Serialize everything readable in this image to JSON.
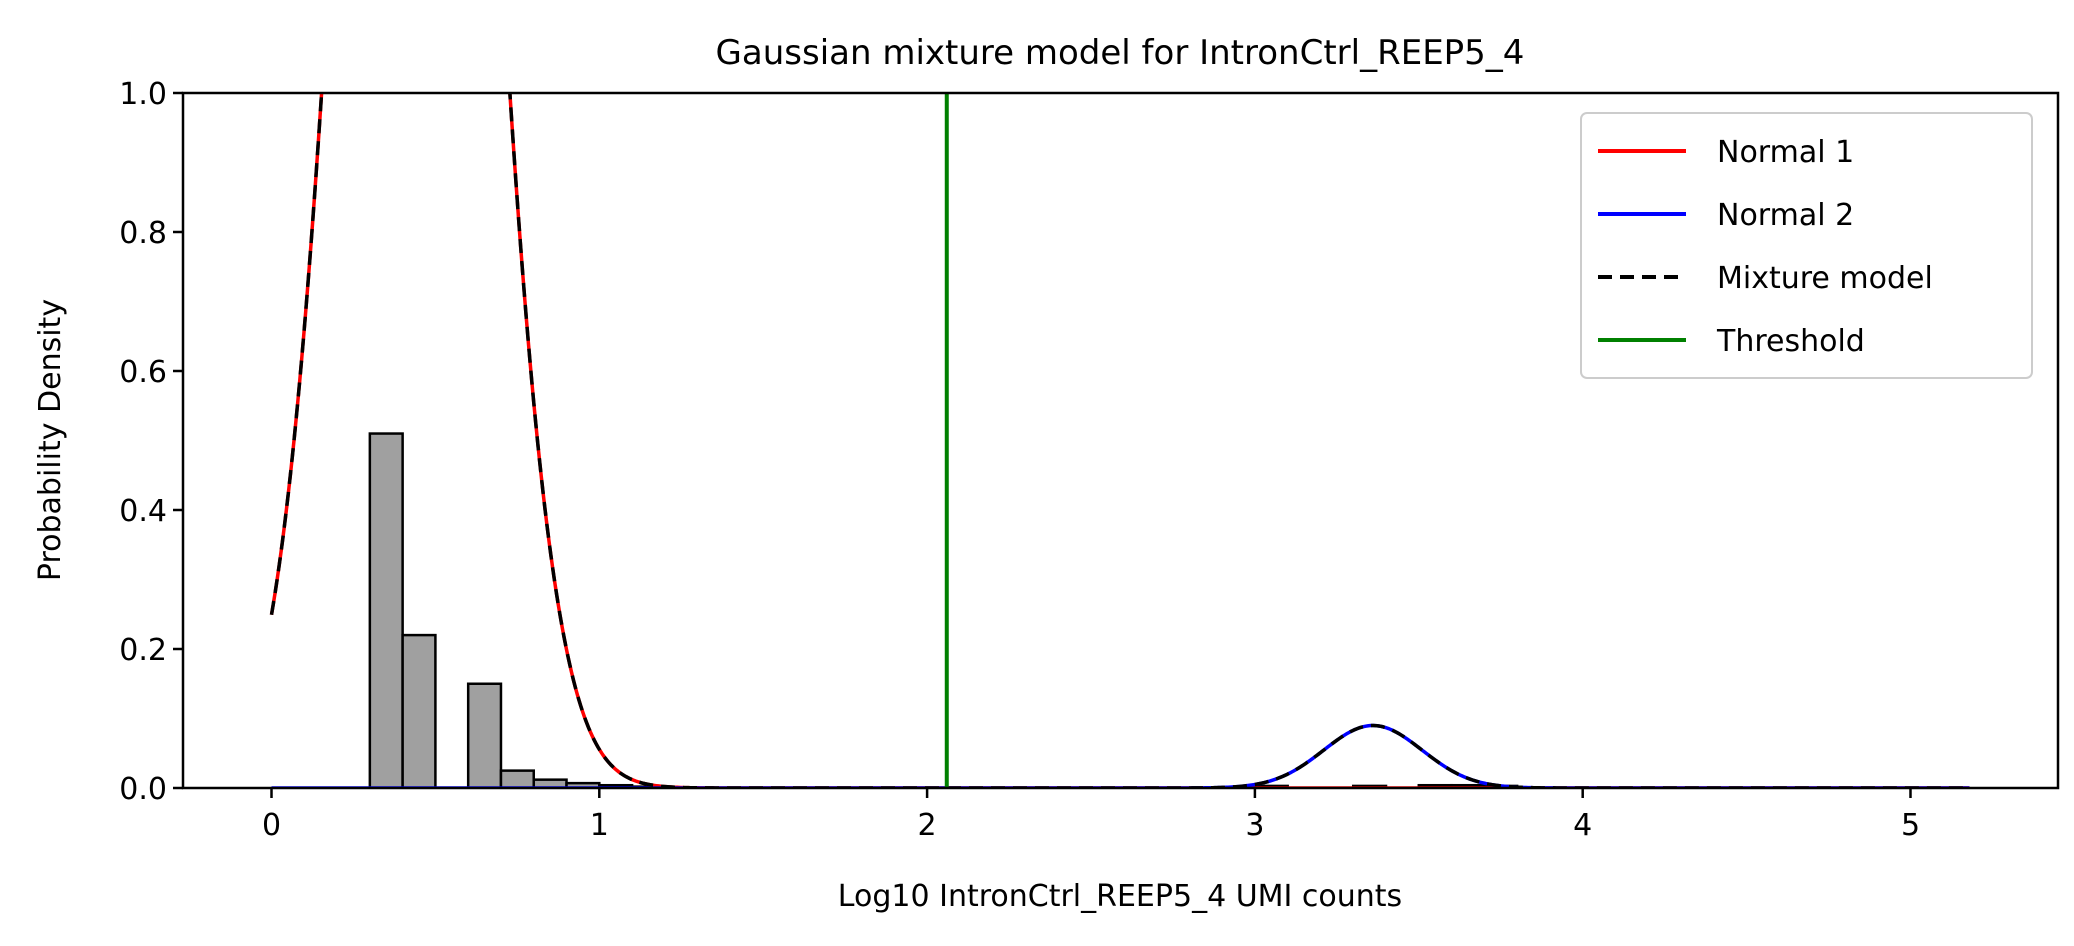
{
  "chart_data": {
    "type": "line",
    "title": "Gaussian mixture model for IntronCtrl_REEP5_4",
    "xlabel": "Log10 IntronCtrl_REEP5_4 UMI counts",
    "ylabel": "Probability Density",
    "xlim": [
      -0.27,
      5.45
    ],
    "ylim": [
      0,
      1.0
    ],
    "xticks": [
      "0",
      "1",
      "2",
      "3",
      "4",
      "5"
    ],
    "yticks": [
      "0.0",
      "0.2",
      "0.4",
      "0.6",
      "0.8",
      "1.0"
    ],
    "grid": false,
    "legend_position": "top-right",
    "histogram": {
      "bin_width": 0.1,
      "color": "#a0a0a0",
      "bars": [
        {
          "x": 0.3,
          "y": 0.51
        },
        {
          "x": 0.4,
          "y": 0.22
        },
        {
          "x": 0.6,
          "y": 0.15
        },
        {
          "x": 0.7,
          "y": 0.025
        },
        {
          "x": 0.8,
          "y": 0.012
        },
        {
          "x": 0.9,
          "y": 0.007
        },
        {
          "x": 1.0,
          "y": 0.004
        },
        {
          "x": 1.1,
          "y": 0.002
        },
        {
          "x": 3.0,
          "y": 0.003
        },
        {
          "x": 3.3,
          "y": 0.003
        },
        {
          "x": 3.5,
          "y": 0.004
        },
        {
          "x": 3.6,
          "y": 0.004
        },
        {
          "x": 3.7,
          "y": 0.003
        }
      ]
    },
    "series": [
      {
        "name": "Normal 1",
        "color": "#ff0000",
        "style": "solid",
        "kind": "gaussian",
        "weight": 1.4055,
        "mean": 0.44,
        "sd": 0.2,
        "x_range": [
          0,
          5.18
        ]
      },
      {
        "name": "Normal 2",
        "color": "#0000ff",
        "style": "solid",
        "kind": "gaussian",
        "weight": 0.0338,
        "mean": 3.36,
        "sd": 0.15,
        "x_range": [
          0,
          5.18
        ]
      },
      {
        "name": "Mixture model",
        "color": "#000000",
        "style": "dashed",
        "kind": "mixture",
        "x_range": [
          0,
          5.18
        ]
      },
      {
        "name": "Threshold",
        "color": "#008000",
        "style": "solid",
        "kind": "vline",
        "x": 2.06
      }
    ]
  }
}
